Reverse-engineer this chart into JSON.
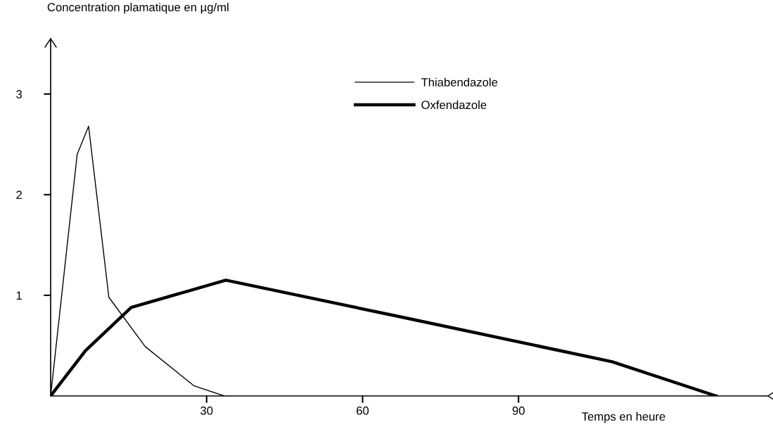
{
  "chart_data": {
    "type": "line",
    "ylabel": "Concentration plamatique en µg/ml",
    "xlabel": "Temps en heure",
    "xlim": [
      0,
      138
    ],
    "xticks": [
      30,
      60,
      90
    ],
    "ylim": [
      0,
      3.55
    ],
    "yticks": [
      1,
      2,
      3
    ],
    "legend": "top right",
    "grid": false,
    "marker": "none",
    "line_style": "solid",
    "series": [
      {
        "name": "Thiabendazole",
        "color": "#000000",
        "x": [
          0,
          5.1,
          7.3,
          11.2,
          18.2,
          27.6,
          33.4
        ],
        "values": [
          0,
          2.4,
          2.68,
          0.98,
          0.49,
          0.1,
          0
        ]
      },
      {
        "name": "Oxfendazole",
        "color": "#000000",
        "x": [
          0,
          6.7,
          15.5,
          33.7,
          66,
          108,
          128
        ],
        "values": [
          0,
          0.45,
          0.88,
          1.15,
          0.8,
          0.34,
          0
        ]
      }
    ]
  }
}
